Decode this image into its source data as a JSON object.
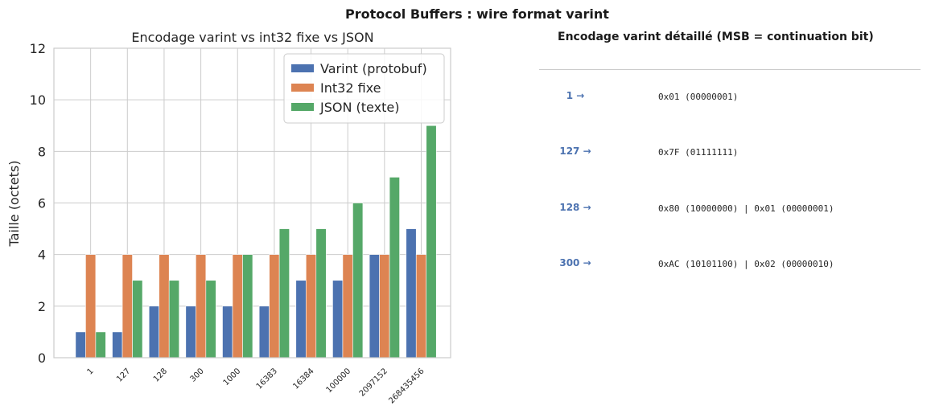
{
  "figure": {
    "suptitle": "Protocol Buffers : wire format varint"
  },
  "chart_data": {
    "type": "bar",
    "title": "Encodage varint vs int32 fixe vs JSON",
    "xlabel": "",
    "ylabel": "Taille (octets)",
    "ylim": [
      0,
      12
    ],
    "yticks": [
      0,
      2,
      4,
      6,
      8,
      10,
      12
    ],
    "grid": true,
    "legend_position": "top-right",
    "categories": [
      "1",
      "127",
      "128",
      "300",
      "1000",
      "16383",
      "16384",
      "100000",
      "2097152",
      "268435456"
    ],
    "series": [
      {
        "name": "Varint (protobuf)",
        "color": "#4c72b0",
        "values": [
          1,
          1,
          2,
          2,
          2,
          2,
          3,
          3,
          4,
          5
        ]
      },
      {
        "name": "Int32 fixe",
        "color": "#dd8452",
        "values": [
          4,
          4,
          4,
          4,
          4,
          4,
          4,
          4,
          4,
          4
        ]
      },
      {
        "name": "JSON (texte)",
        "color": "#55a868",
        "values": [
          1,
          3,
          3,
          3,
          4,
          5,
          5,
          6,
          7,
          9
        ]
      }
    ]
  },
  "encoding_panel": {
    "title": "Encodage varint détaillé (MSB = continuation bit)",
    "rows": [
      {
        "number": "1 →",
        "bytes": "0x01 (00000001)"
      },
      {
        "number": "127 →",
        "bytes": "0x7F (01111111)"
      },
      {
        "number": "128 →",
        "bytes": "0x80 (10000000) | 0x01 (00000001)"
      },
      {
        "number": "300 →",
        "bytes": "0xAC (10101100) | 0x02 (00000010)"
      }
    ]
  }
}
